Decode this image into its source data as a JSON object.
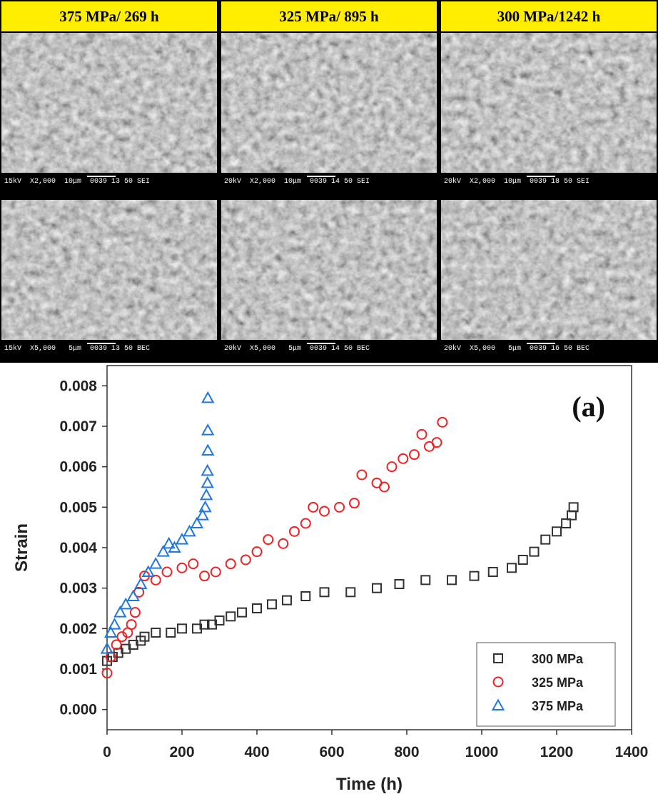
{
  "panels": [
    {
      "title": "375 MPa/ 269 h",
      "captions": [
        "15kV  X2,000  10μm  0039 13 50 SEI",
        "15kV  X5,000   5μm  0039 13 50 BEC"
      ]
    },
    {
      "title": "325 MPa/ 895 h",
      "captions": [
        "20kV  X2,000  10μm  0039 14 50 SEI",
        "20kV  X5,000   5μm  0039 14 50 BEC"
      ]
    },
    {
      "title": "300 MPa/1242 h",
      "captions": [
        "20kV  X2,000  10μm  0039 18 50 SEI",
        "20kV  X5,000   5μm  0039 16 50 BEC"
      ]
    }
  ],
  "chart_data": {
    "type": "scatter",
    "annotation": "(a)",
    "x_label": "Time (h)",
    "y_label": "Strain",
    "xlim": [
      0,
      1400
    ],
    "xticks": [
      0,
      200,
      400,
      600,
      800,
      1000,
      1200,
      1400
    ],
    "ylim": [
      -0.0005,
      0.0085
    ],
    "yticks": [
      {
        "value": 0,
        "label": "0.000"
      },
      0.001,
      0.002,
      0.003,
      0.004,
      0.005,
      0.006,
      0.007,
      0.008
    ],
    "legend": "lower right",
    "series": [
      {
        "name": "300 MPa",
        "color": "#333333",
        "marker": "square",
        "x": [
          0,
          15,
          30,
          50,
          70,
          90,
          100,
          130,
          170,
          200,
          240,
          260,
          280,
          300,
          330,
          360,
          400,
          440,
          480,
          530,
          580,
          650,
          720,
          780,
          850,
          920,
          980,
          1030,
          1080,
          1110,
          1140,
          1170,
          1200,
          1225,
          1240,
          1245
        ],
        "values": [
          0.0012,
          0.0013,
          0.0014,
          0.0015,
          0.0016,
          0.0017,
          0.0018,
          0.0019,
          0.0019,
          0.002,
          0.002,
          0.0021,
          0.0021,
          0.0022,
          0.0023,
          0.0024,
          0.0025,
          0.0026,
          0.0027,
          0.0028,
          0.0029,
          0.0029,
          0.003,
          0.0031,
          0.0032,
          0.0032,
          0.0033,
          0.0034,
          0.0035,
          0.0037,
          0.0039,
          0.0042,
          0.0044,
          0.0046,
          0.0048,
          0.005
        ]
      },
      {
        "name": "325 MPa",
        "color": "#ee2222",
        "marker": "circle",
        "x": [
          0,
          10,
          25,
          40,
          55,
          65,
          75,
          85,
          100,
          130,
          160,
          200,
          230,
          260,
          290,
          330,
          370,
          400,
          430,
          470,
          500,
          530,
          550,
          580,
          620,
          660,
          680,
          720,
          740,
          760,
          790,
          820,
          840,
          860,
          880,
          895
        ],
        "values": [
          0.0009,
          0.0013,
          0.0016,
          0.0018,
          0.0019,
          0.0021,
          0.0024,
          0.0029,
          0.0033,
          0.0032,
          0.0034,
          0.0035,
          0.0036,
          0.0033,
          0.0034,
          0.0036,
          0.0037,
          0.0039,
          0.0042,
          0.0041,
          0.0044,
          0.0046,
          0.005,
          0.0049,
          0.005,
          0.0051,
          0.0058,
          0.0056,
          0.0055,
          0.006,
          0.0062,
          0.0063,
          0.0068,
          0.0065,
          0.0066,
          0.0071
        ]
      },
      {
        "name": "375 MPa",
        "color": "#2277dd",
        "marker": "triangle",
        "x": [
          0,
          10,
          20,
          35,
          50,
          70,
          90,
          110,
          130,
          150,
          165,
          180,
          200,
          220,
          240,
          255,
          262,
          265,
          268,
          268,
          269,
          269,
          269
        ],
        "values": [
          0.0015,
          0.0019,
          0.0021,
          0.0024,
          0.0026,
          0.0028,
          0.0031,
          0.0034,
          0.0036,
          0.0039,
          0.0041,
          0.004,
          0.0042,
          0.0044,
          0.0046,
          0.0048,
          0.005,
          0.0053,
          0.0056,
          0.0059,
          0.0064,
          0.0069,
          0.0077
        ]
      }
    ]
  }
}
